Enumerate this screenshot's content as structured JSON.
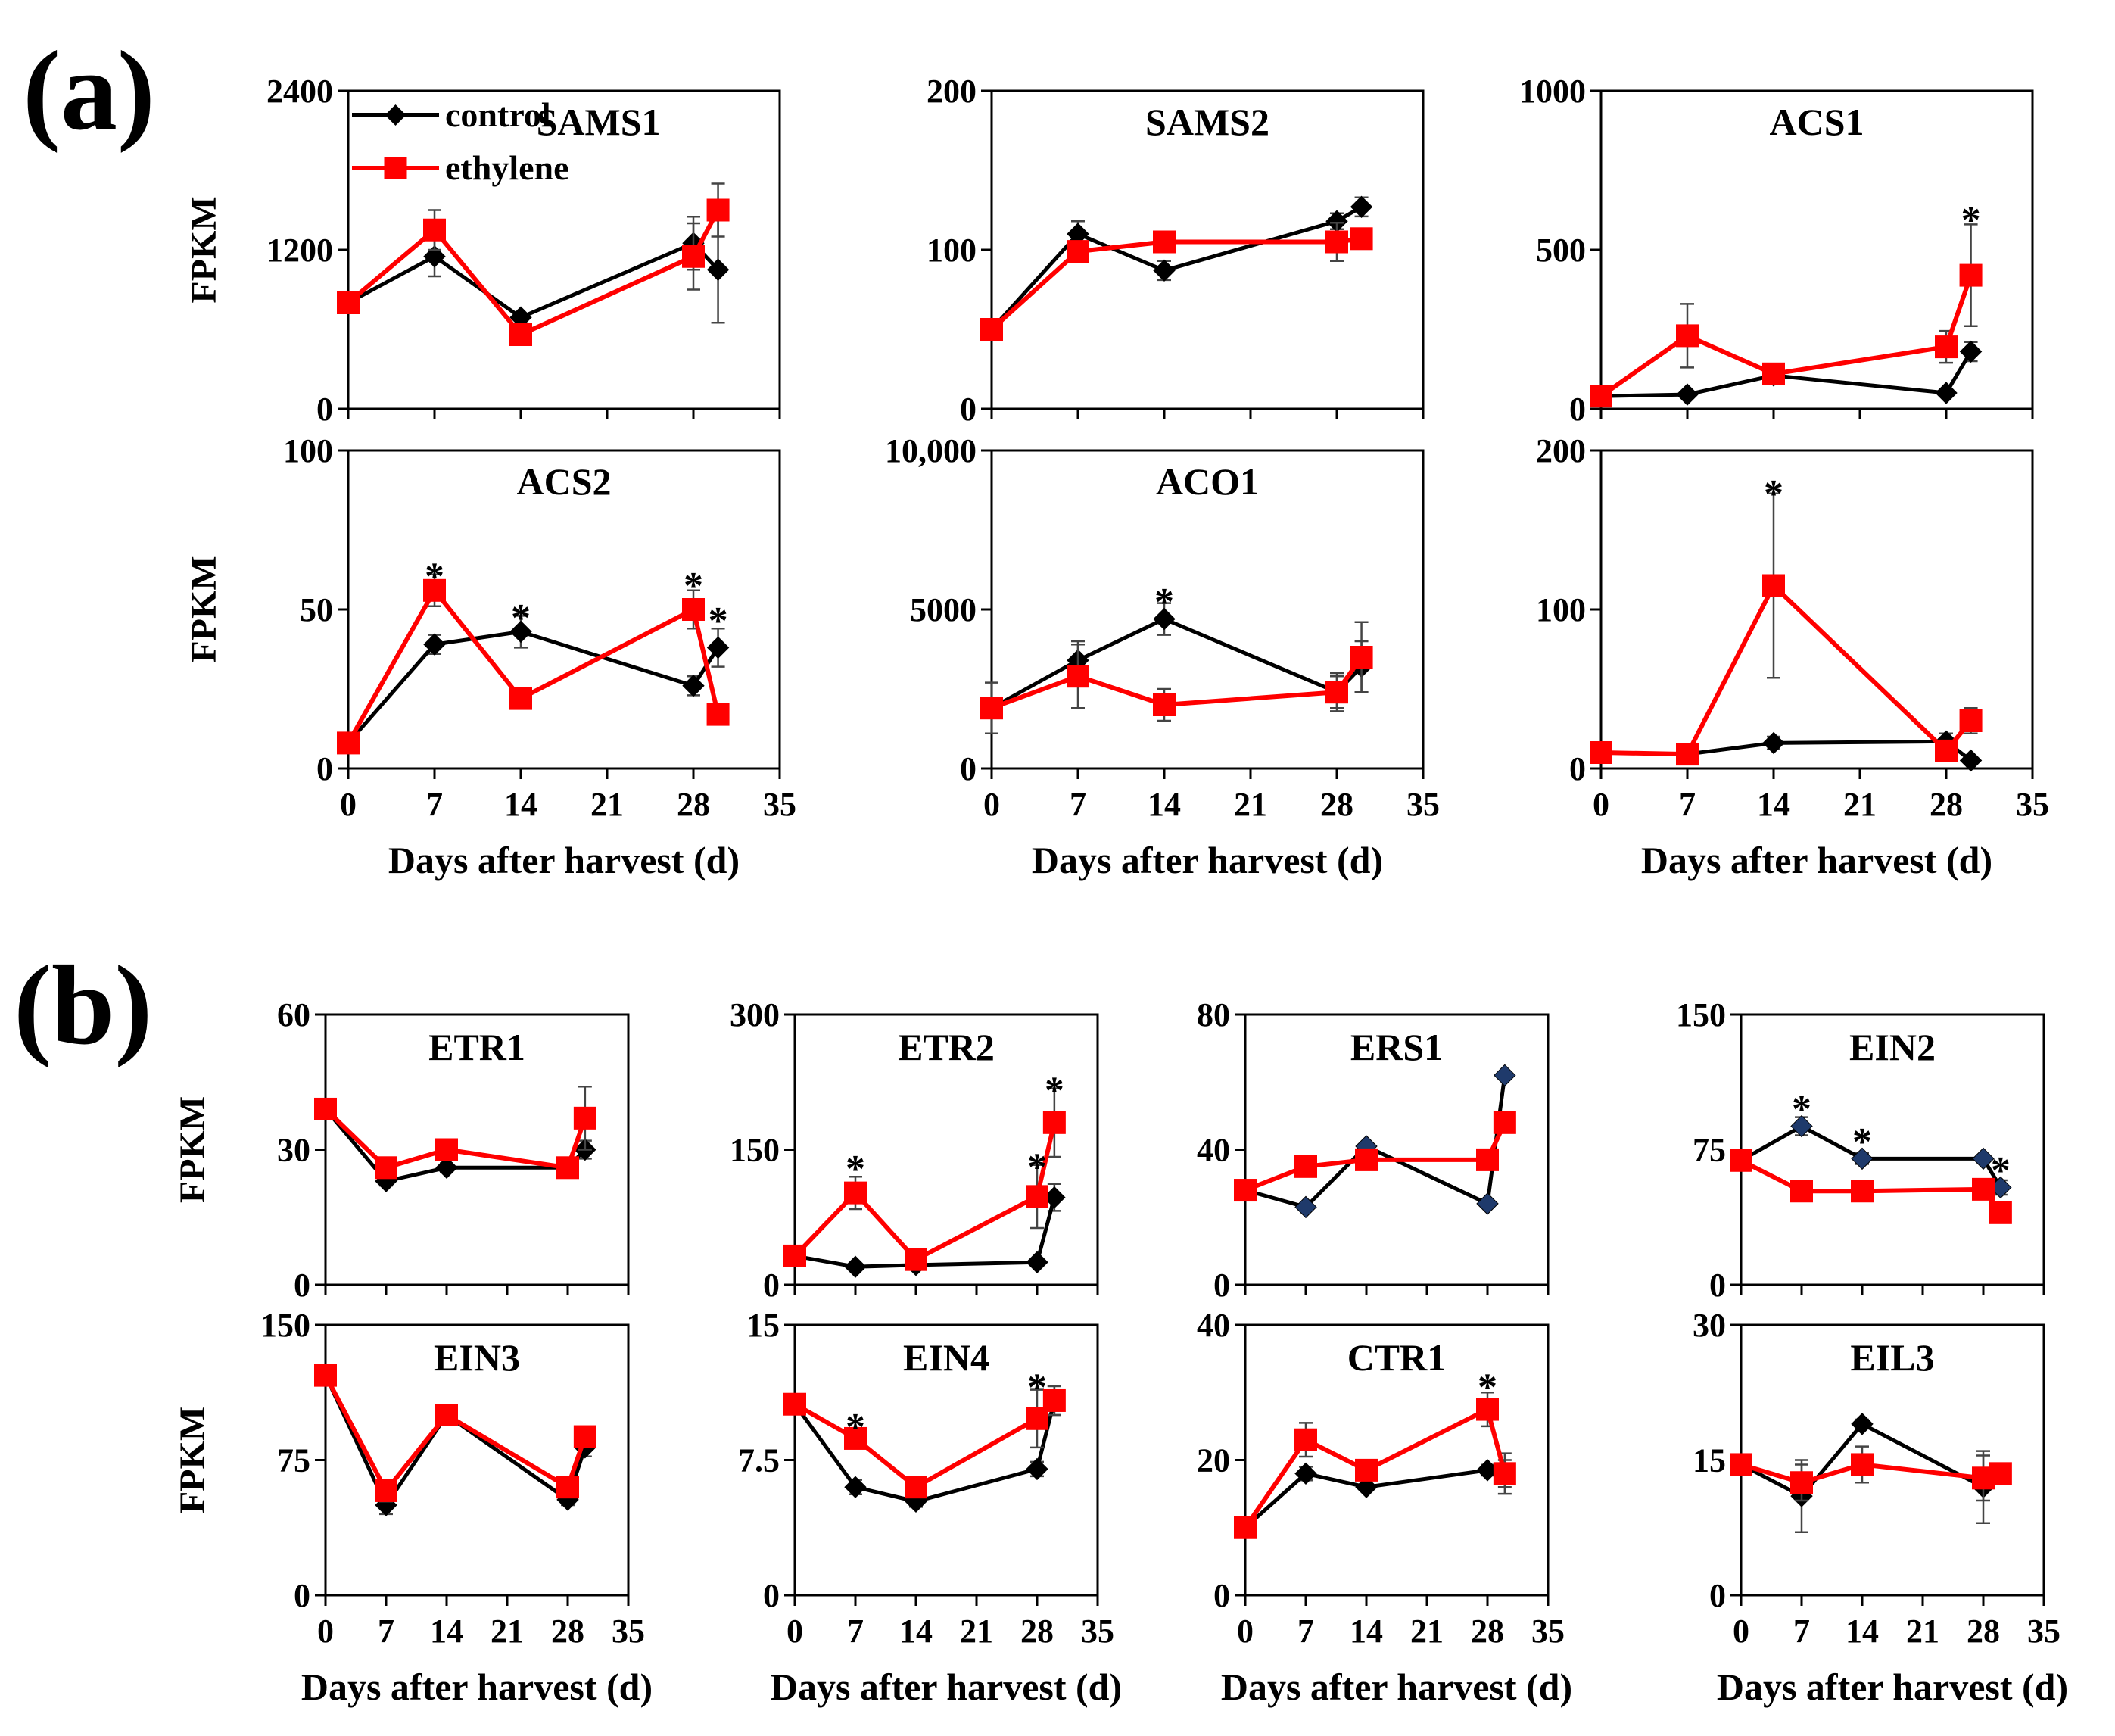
{
  "figure": {
    "panel_labels": [
      "(a)",
      "(b)"
    ],
    "legend": [
      {
        "label": "control",
        "color": "#000000",
        "marker": "diamond"
      },
      {
        "label": "ethylene",
        "color": "#ff0000",
        "marker": "square"
      }
    ],
    "colors": {
      "control": "#000000",
      "control_marker_b": "#1f3a6b",
      "ethylene": "#ff0000",
      "errorbar": "#444444"
    }
  },
  "chart_data": [
    {
      "type": "line",
      "panel": "a",
      "title": "SAMS1",
      "ylabel": "FPKM",
      "xlabel": "",
      "ylim": [
        0,
        2400
      ],
      "yticks": [
        0,
        1200,
        2400
      ],
      "ytick_labels": [
        "0",
        "1200",
        "2400"
      ],
      "xlim": [
        0,
        35
      ],
      "xticks": [
        0,
        7,
        14,
        21,
        28,
        35
      ],
      "show_legend": true,
      "series": [
        {
          "name": "control",
          "x": [
            0,
            7,
            14,
            28,
            30
          ],
          "y": [
            800,
            1150,
            690,
            1250,
            1050
          ],
          "err": [
            0,
            150,
            0,
            200,
            400
          ]
        },
        {
          "name": "ethylene",
          "x": [
            0,
            7,
            14,
            28,
            30
          ],
          "y": [
            800,
            1350,
            560,
            1150,
            1500
          ],
          "err": [
            0,
            150,
            0,
            250,
            200
          ]
        }
      ],
      "significant": []
    },
    {
      "type": "line",
      "panel": "a",
      "title": "SAMS2",
      "ylabel": "",
      "xlabel": "",
      "ylim": [
        0,
        200
      ],
      "yticks": [
        0,
        100,
        200
      ],
      "ytick_labels": [
        "0",
        "100",
        "200"
      ],
      "xlim": [
        0,
        35
      ],
      "xticks": [
        0,
        7,
        14,
        21,
        28,
        35
      ],
      "series": [
        {
          "name": "control",
          "x": [
            0,
            7,
            14,
            28,
            30
          ],
          "y": [
            50,
            110,
            87,
            118,
            127
          ],
          "err": [
            0,
            8,
            6,
            5,
            6
          ]
        },
        {
          "name": "ethylene",
          "x": [
            0,
            7,
            14,
            28,
            30
          ],
          "y": [
            50,
            99,
            105,
            105,
            107
          ],
          "err": [
            0,
            4,
            3,
            12,
            5
          ]
        }
      ],
      "significant": []
    },
    {
      "type": "line",
      "panel": "a",
      "title": "ACS1",
      "ylabel": "",
      "xlabel": "",
      "ylim": [
        0,
        1000
      ],
      "yticks": [
        0,
        500,
        1000
      ],
      "ytick_labels": [
        "0",
        "500",
        "1000"
      ],
      "xlim": [
        0,
        35
      ],
      "xticks": [
        0,
        7,
        14,
        21,
        28,
        35
      ],
      "series": [
        {
          "name": "control",
          "x": [
            0,
            7,
            14,
            28,
            30
          ],
          "y": [
            40,
            45,
            105,
            50,
            180
          ],
          "err": [
            0,
            0,
            0,
            0,
            30
          ]
        },
        {
          "name": "ethylene",
          "x": [
            0,
            7,
            14,
            28,
            30
          ],
          "y": [
            40,
            230,
            110,
            195,
            420
          ],
          "err": [
            0,
            100,
            0,
            50,
            160
          ]
        }
      ],
      "significant": [
        {
          "x": 30,
          "y": 620
        }
      ]
    },
    {
      "type": "line",
      "panel": "a",
      "title": "ACS2",
      "ylabel": "FPKM",
      "xlabel": "Days after harvest (d)",
      "ylim": [
        0,
        100
      ],
      "yticks": [
        0,
        50,
        100
      ],
      "ytick_labels": [
        "0",
        "50",
        "100"
      ],
      "xlim": [
        0,
        35
      ],
      "xticks": [
        0,
        7,
        14,
        21,
        28,
        35
      ],
      "xtick_labels": [
        "0",
        "7",
        "14",
        "21",
        "28",
        "35"
      ],
      "series": [
        {
          "name": "control",
          "x": [
            0,
            7,
            14,
            28,
            30
          ],
          "y": [
            8,
            39,
            43,
            26,
            38
          ],
          "err": [
            0,
            3,
            5,
            3,
            6
          ]
        },
        {
          "name": "ethylene",
          "x": [
            0,
            7,
            14,
            28,
            30
          ],
          "y": [
            8,
            56,
            22,
            50,
            17
          ],
          "err": [
            0,
            5,
            0,
            6,
            0
          ]
        }
      ],
      "significant": [
        {
          "x": 7,
          "y": 63
        },
        {
          "x": 14,
          "y": 50
        },
        {
          "x": 28,
          "y": 60
        },
        {
          "x": 30,
          "y": 49
        }
      ]
    },
    {
      "type": "line",
      "panel": "a",
      "title": "ACO1",
      "ylabel": "",
      "xlabel": "Days after harvest (d)",
      "ylim": [
        0,
        10000
      ],
      "yticks": [
        0,
        5000,
        10000
      ],
      "ytick_labels": [
        "0",
        "5000",
        "10,000"
      ],
      "xlim": [
        0,
        35
      ],
      "xticks": [
        0,
        7,
        14,
        21,
        28,
        35
      ],
      "xtick_labels": [
        "0",
        "7",
        "14",
        "21",
        "28",
        "35"
      ],
      "series": [
        {
          "name": "control",
          "x": [
            0,
            7,
            14,
            28,
            30
          ],
          "y": [
            1900,
            3400,
            4700,
            2400,
            3200
          ],
          "err": [
            800,
            600,
            500,
            500,
            800
          ]
        },
        {
          "name": "ethylene",
          "x": [
            0,
            7,
            14,
            28,
            30
          ],
          "y": [
            1900,
            2900,
            2000,
            2400,
            3500
          ],
          "err": [
            0,
            1000,
            500,
            600,
            1100
          ]
        }
      ],
      "significant": [
        {
          "x": 14,
          "y": 5500
        }
      ]
    },
    {
      "type": "line",
      "panel": "a",
      "title": "",
      "ylabel": "",
      "xlabel": "Days after harvest (d)",
      "ylim": [
        0,
        200
      ],
      "yticks": [
        0,
        100,
        200
      ],
      "ytick_labels": [
        "0",
        "100",
        "200"
      ],
      "xlim": [
        0,
        35
      ],
      "xticks": [
        0,
        7,
        14,
        21,
        28,
        35
      ],
      "xtick_labels": [
        "0",
        "7",
        "14",
        "21",
        "28",
        "35"
      ],
      "series": [
        {
          "name": "control",
          "x": [
            0,
            7,
            14,
            28,
            30
          ],
          "y": [
            10,
            9,
            16,
            17,
            5
          ],
          "err": [
            0,
            0,
            4,
            5,
            0
          ]
        },
        {
          "name": "ethylene",
          "x": [
            0,
            7,
            14,
            28,
            30
          ],
          "y": [
            10,
            9,
            115,
            11,
            30
          ],
          "err": [
            0,
            0,
            58,
            5,
            8
          ]
        }
      ],
      "significant": [
        {
          "x": 14,
          "y": 178
        }
      ]
    },
    {
      "type": "line",
      "panel": "b",
      "title": "ETR1",
      "ylabel": "FPKM",
      "xlabel": "",
      "ylim": [
        0,
        60
      ],
      "yticks": [
        0,
        30,
        60
      ],
      "ytick_labels": [
        "0",
        "30",
        "60"
      ],
      "xlim": [
        0,
        35
      ],
      "xticks": [
        0,
        7,
        14,
        21,
        28,
        35
      ],
      "series": [
        {
          "name": "control",
          "x": [
            0,
            7,
            14,
            28,
            30
          ],
          "y": [
            39,
            23,
            26,
            26,
            30
          ],
          "err": [
            0,
            1,
            1,
            1,
            2
          ]
        },
        {
          "name": "ethylene",
          "x": [
            0,
            7,
            14,
            28,
            30
          ],
          "y": [
            39,
            26,
            30,
            26,
            37
          ],
          "err": [
            0,
            1,
            1,
            1,
            7
          ]
        }
      ],
      "significant": []
    },
    {
      "type": "line",
      "panel": "b",
      "title": "ETR2",
      "ylabel": "",
      "xlabel": "",
      "ylim": [
        0,
        300
      ],
      "yticks": [
        0,
        150,
        300
      ],
      "ytick_labels": [
        "0",
        "150",
        "300"
      ],
      "xlim": [
        0,
        35
      ],
      "xticks": [
        0,
        7,
        14,
        21,
        28,
        35
      ],
      "series": [
        {
          "name": "control",
          "x": [
            0,
            7,
            14,
            28,
            30
          ],
          "y": [
            32,
            20,
            22,
            25,
            97
          ],
          "err": [
            0,
            0,
            0,
            0,
            15
          ]
        },
        {
          "name": "ethylene",
          "x": [
            0,
            7,
            14,
            28,
            30
          ],
          "y": [
            32,
            102,
            28,
            98,
            180
          ],
          "err": [
            0,
            18,
            0,
            35,
            38
          ]
        }
      ],
      "significant": [
        {
          "x": 7,
          "y": 138
        },
        {
          "x": 28,
          "y": 140
        },
        {
          "x": 30,
          "y": 225
        }
      ]
    },
    {
      "type": "line",
      "panel": "b",
      "title": "ERS1",
      "ylabel": "",
      "xlabel": "",
      "ylim": [
        0,
        80
      ],
      "yticks": [
        0,
        40,
        80
      ],
      "ytick_labels": [
        "0",
        "40",
        "80"
      ],
      "xlim": [
        0,
        35
      ],
      "xticks": [
        0,
        7,
        14,
        21,
        28,
        35
      ],
      "series": [
        {
          "name": "control",
          "x": [
            0,
            7,
            14,
            28,
            30
          ],
          "y": [
            28,
            23,
            41,
            24,
            62
          ],
          "err": [
            0,
            0,
            0,
            0,
            0
          ]
        },
        {
          "name": "ethylene",
          "x": [
            0,
            7,
            14,
            28,
            30
          ],
          "y": [
            28,
            35,
            37,
            37,
            48
          ],
          "err": [
            0,
            0,
            0,
            0,
            0
          ]
        }
      ],
      "significant": []
    },
    {
      "type": "line",
      "panel": "b",
      "title": "EIN2",
      "ylabel": "",
      "xlabel": "",
      "ylim": [
        0,
        150
      ],
      "yticks": [
        0,
        75,
        150
      ],
      "ytick_labels": [
        "0",
        "75",
        "150"
      ],
      "xlim": [
        0,
        35
      ],
      "xticks": [
        0,
        7,
        14,
        21,
        28,
        35
      ],
      "series": [
        {
          "name": "control",
          "x": [
            0,
            7,
            14,
            28,
            30
          ],
          "y": [
            69,
            88,
            70,
            70,
            54
          ],
          "err": [
            0,
            5,
            3,
            2,
            4
          ]
        },
        {
          "name": "ethylene",
          "x": [
            0,
            7,
            14,
            28,
            30
          ],
          "y": [
            69,
            52,
            52,
            53,
            40
          ],
          "err": [
            0,
            5,
            4,
            4,
            0
          ]
        }
      ],
      "significant": [
        {
          "x": 7,
          "y": 102
        },
        {
          "x": 14,
          "y": 84
        },
        {
          "x": 30,
          "y": 68
        }
      ]
    },
    {
      "type": "line",
      "panel": "b",
      "title": "EIN3",
      "ylabel": "FPKM",
      "xlabel": "Days after harvest (d)",
      "ylim": [
        0,
        150
      ],
      "yticks": [
        0,
        75,
        150
      ],
      "ytick_labels": [
        "0",
        "75",
        "150"
      ],
      "xlim": [
        0,
        35
      ],
      "xticks": [
        0,
        7,
        14,
        21,
        28,
        35
      ],
      "xtick_labels": [
        "0",
        "7",
        "14",
        "21",
        "28",
        "35"
      ],
      "series": [
        {
          "name": "control",
          "x": [
            0,
            7,
            14,
            28,
            30
          ],
          "y": [
            122,
            50,
            100,
            53,
            82
          ],
          "err": [
            0,
            5,
            0,
            3,
            5
          ]
        },
        {
          "name": "ethylene",
          "x": [
            0,
            7,
            14,
            28,
            30
          ],
          "y": [
            122,
            58,
            100,
            60,
            88
          ],
          "err": [
            0,
            6,
            0,
            3,
            3
          ]
        }
      ],
      "significant": []
    },
    {
      "type": "line",
      "panel": "b",
      "title": "EIN4",
      "ylabel": "",
      "xlabel": "Days after harvest (d)",
      "ylim": [
        0,
        15
      ],
      "yticks": [
        0,
        7.5,
        15
      ],
      "ytick_labels": [
        "0",
        "7.5",
        "15"
      ],
      "xlim": [
        0,
        35
      ],
      "xticks": [
        0,
        7,
        14,
        21,
        28,
        35
      ],
      "xtick_labels": [
        "0",
        "7",
        "14",
        "21",
        "28",
        "35"
      ],
      "series": [
        {
          "name": "control",
          "x": [
            0,
            7,
            14,
            28,
            30
          ],
          "y": [
            10.6,
            6,
            5.2,
            7,
            10.8
          ],
          "err": [
            0,
            0.4,
            0.3,
            0.4,
            0.8
          ]
        },
        {
          "name": "ethylene",
          "x": [
            0,
            7,
            14,
            28,
            30
          ],
          "y": [
            10.6,
            8.7,
            6,
            9.8,
            10.8
          ],
          "err": [
            0,
            0.4,
            0,
            1.6,
            0.8
          ]
        }
      ],
      "significant": [
        {
          "x": 7,
          "y": 9.8
        },
        {
          "x": 28,
          "y": 12
        }
      ]
    },
    {
      "type": "line",
      "panel": "b",
      "title": "CTR1",
      "ylabel": "",
      "xlabel": "Days after harvest (d)",
      "ylim": [
        0,
        40
      ],
      "yticks": [
        0,
        20,
        40
      ],
      "ytick_labels": [
        "0",
        "20",
        "40"
      ],
      "xlim": [
        0,
        35
      ],
      "xticks": [
        0,
        7,
        14,
        21,
        28,
        35
      ],
      "xtick_labels": [
        "0",
        "7",
        "14",
        "21",
        "28",
        "35"
      ],
      "series": [
        {
          "name": "control",
          "x": [
            0,
            7,
            14,
            28,
            30
          ],
          "y": [
            10,
            18,
            16,
            18.5,
            18
          ],
          "err": [
            0,
            1,
            0.5,
            0.8,
            2
          ]
        },
        {
          "name": "ethylene",
          "x": [
            0,
            7,
            14,
            28,
            30
          ],
          "y": [
            10,
            23,
            18.5,
            27.5,
            18
          ],
          "err": [
            0,
            2.5,
            0.5,
            2.5,
            3
          ]
        }
      ],
      "significant": [
        {
          "x": 28,
          "y": 32
        }
      ]
    },
    {
      "type": "line",
      "panel": "b",
      "title": "EIL3",
      "ylabel": "",
      "xlabel": "Days after harvest (d)",
      "ylim": [
        0,
        30
      ],
      "yticks": [
        0,
        15,
        30
      ],
      "ytick_labels": [
        "0",
        "15",
        "30"
      ],
      "xlim": [
        0,
        35
      ],
      "xticks": [
        0,
        7,
        14,
        21,
        28,
        35
      ],
      "xtick_labels": [
        "0",
        "7",
        "14",
        "21",
        "28",
        "35"
      ],
      "series": [
        {
          "name": "control",
          "x": [
            0,
            7,
            14,
            28,
            30
          ],
          "y": [
            14.5,
            11,
            19,
            12,
            13.5
          ],
          "err": [
            0,
            4,
            0.5,
            4,
            0
          ]
        },
        {
          "name": "ethylene",
          "x": [
            0,
            7,
            14,
            28,
            30
          ],
          "y": [
            14.5,
            12.5,
            14.5,
            13,
            13.5
          ],
          "err": [
            0,
            2,
            2,
            2.5,
            0
          ]
        }
      ],
      "significant": []
    }
  ]
}
